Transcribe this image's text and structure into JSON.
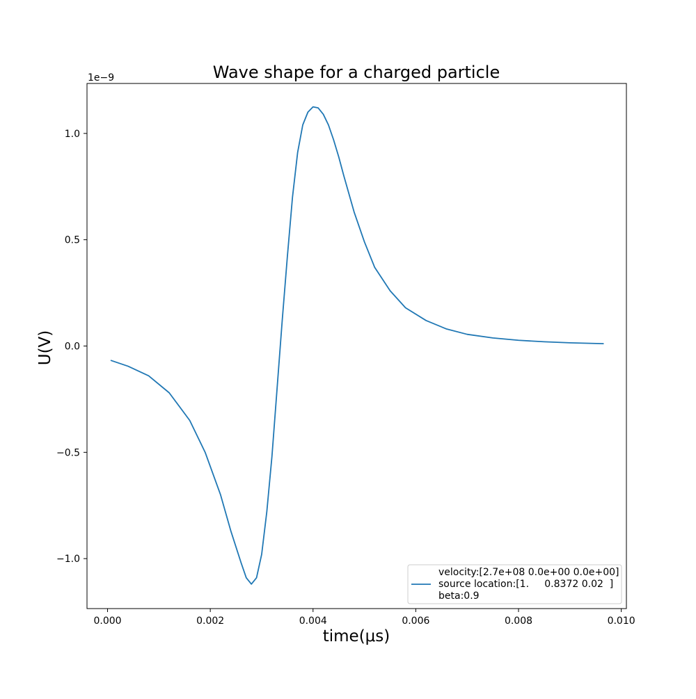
{
  "chart_data": {
    "type": "line",
    "title": "Wave shape for a charged particle",
    "xlabel": "time(μs)",
    "ylabel": "U(V)",
    "y_offset_label": "1e−9",
    "xlim": [
      -0.0004,
      0.0101
    ],
    "ylim": [
      -1.235,
      1.235
    ],
    "x_ticks": [
      0.0,
      0.002,
      0.004,
      0.006,
      0.008,
      0.01
    ],
    "x_tick_labels": [
      "0.000",
      "0.002",
      "0.004",
      "0.006",
      "0.008",
      "0.010"
    ],
    "y_ticks": [
      -1.0,
      -0.5,
      0.0,
      0.5,
      1.0
    ],
    "y_tick_labels": [
      "−1.0",
      "−0.5",
      "0.0",
      "0.5",
      "1.0"
    ],
    "grid": false,
    "legend_position": "lower-right",
    "series": [
      {
        "name": "velocity:[2.7e+08 0.0e+00 0.0e+00]\nsource location:[1.     0.8372 0.02  ]\nbeta:0.9",
        "legend_lines": [
          "velocity:[2.7e+08 0.0e+00 0.0e+00]",
          "source location:[1.     0.8372 0.02  ]",
          "beta:0.9"
        ],
        "color": "#1f77b4",
        "x": [
          7e-05,
          0.0004,
          0.0008,
          0.0012,
          0.0016,
          0.0019,
          0.0022,
          0.0024,
          0.0026,
          0.0027,
          0.0028,
          0.0029,
          0.003,
          0.0031,
          0.0032,
          0.0033,
          0.0034,
          0.0035,
          0.0036,
          0.0037,
          0.0038,
          0.0039,
          0.004,
          0.0041,
          0.0042,
          0.0043,
          0.0044,
          0.0045,
          0.0046,
          0.0048,
          0.005,
          0.0052,
          0.0055,
          0.0058,
          0.0062,
          0.0066,
          0.007,
          0.0075,
          0.008,
          0.0085,
          0.009,
          0.00965
        ],
        "values": [
          -0.068,
          -0.095,
          -0.14,
          -0.22,
          -0.35,
          -0.5,
          -0.7,
          -0.87,
          -1.02,
          -1.09,
          -1.12,
          -1.09,
          -0.98,
          -0.78,
          -0.52,
          -0.2,
          0.12,
          0.42,
          0.7,
          0.91,
          1.04,
          1.1,
          1.125,
          1.12,
          1.09,
          1.04,
          0.97,
          0.89,
          0.8,
          0.63,
          0.49,
          0.37,
          0.26,
          0.18,
          0.12,
          0.08,
          0.055,
          0.038,
          0.027,
          0.02,
          0.015,
          0.011
        ]
      }
    ]
  }
}
